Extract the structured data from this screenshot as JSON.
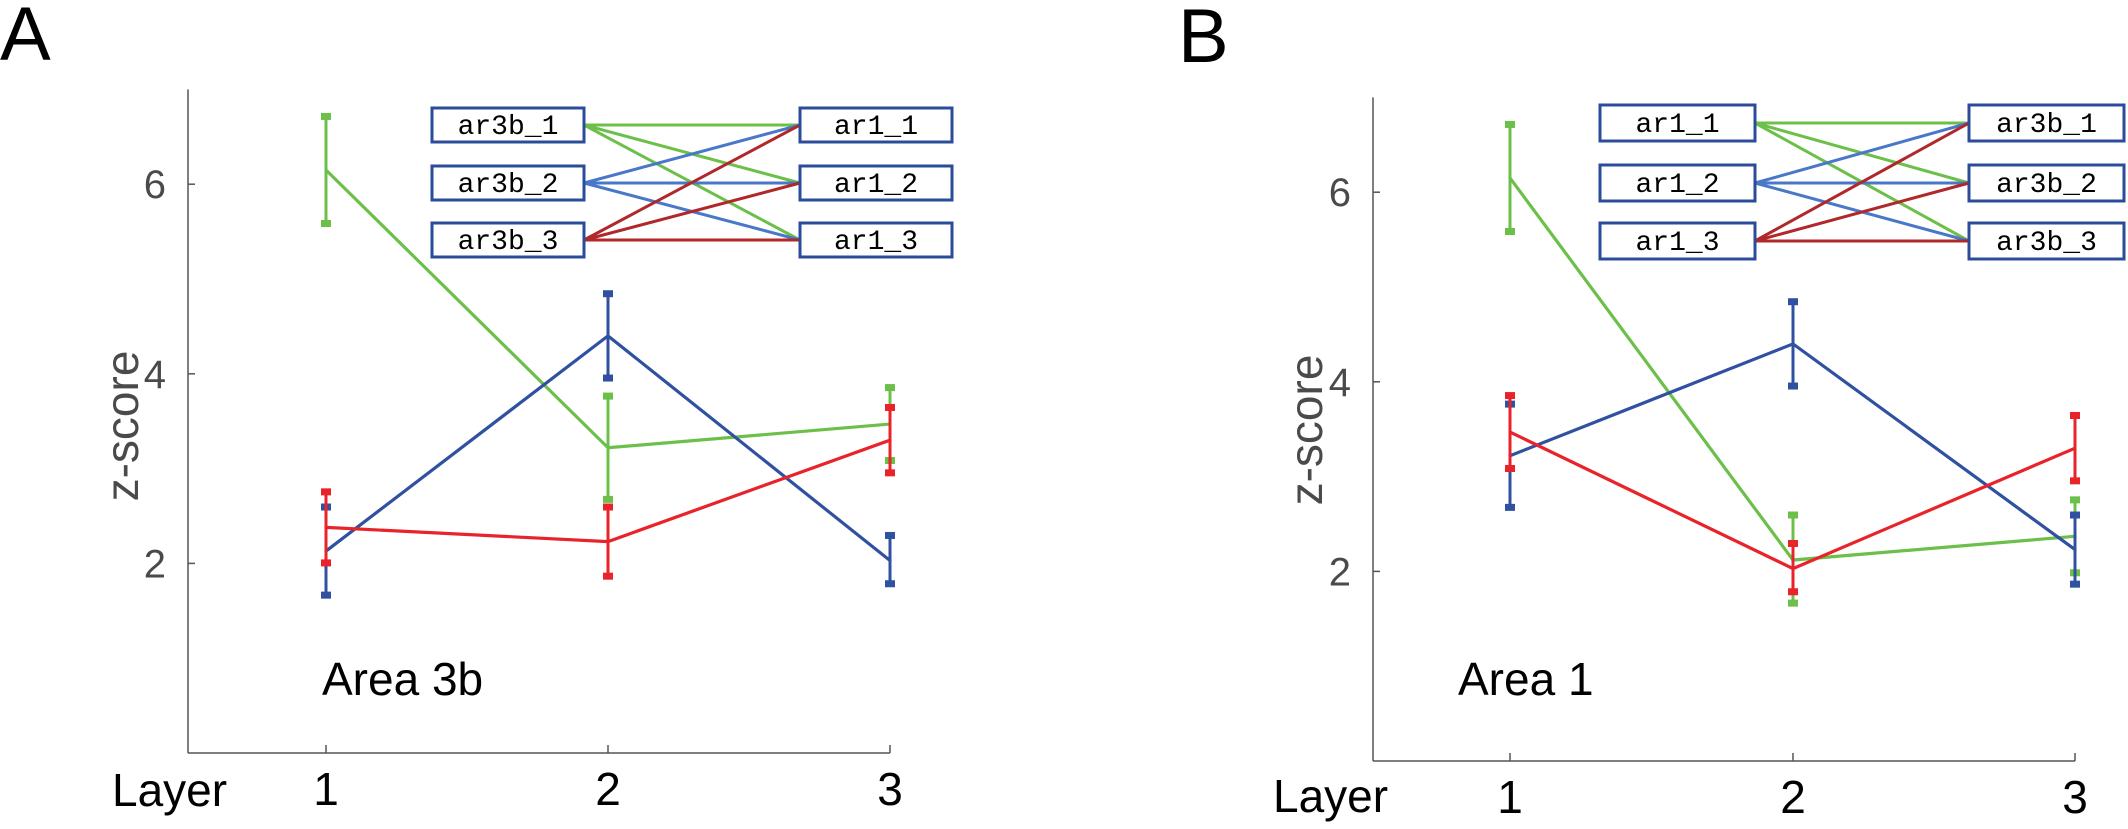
{
  "chart_data": [
    {
      "type": "line",
      "panel_letter": "A",
      "xlabel": "Layer",
      "ylabel": "z-score",
      "annotation": "Area 3b",
      "categories": [
        "1",
        "2",
        "3"
      ],
      "x": [
        1,
        2,
        3
      ],
      "ylim": [
        0,
        7
      ],
      "yticks": [
        2,
        4,
        6
      ],
      "grid": false,
      "series": [
        {
          "color": "#6cc04a",
          "values": [
            6.15,
            3.22,
            3.47
          ],
          "err_low": [
            5.58,
            2.67,
            3.08
          ],
          "err_high": [
            6.72,
            3.77,
            3.86
          ]
        },
        {
          "color": "#3050a0",
          "values": [
            2.13,
            4.4,
            2.03
          ],
          "err_low": [
            1.66,
            3.95,
            1.78
          ],
          "err_high": [
            2.6,
            4.85,
            2.3
          ]
        },
        {
          "color": "#e8232a",
          "values": [
            2.38,
            2.23,
            3.3
          ],
          "err_low": [
            2.0,
            1.86,
            2.95
          ],
          "err_high": [
            2.76,
            2.6,
            3.65
          ]
        }
      ],
      "diagram": {
        "left_boxes": [
          "ar3b_1",
          "ar3b_2",
          "ar3b_3"
        ],
        "right_boxes": [
          "ar1_1",
          "ar1_2",
          "ar1_3"
        ],
        "connections": [
          {
            "from": 0,
            "color": "#6cc04a"
          },
          {
            "from": 1,
            "color": "#4a78c8"
          },
          {
            "from": 2,
            "color": "#b0282a"
          }
        ]
      }
    },
    {
      "type": "line",
      "panel_letter": "B",
      "xlabel": "Layer",
      "ylabel": "z-score",
      "annotation": "Area 1",
      "categories": [
        "1",
        "2",
        "3"
      ],
      "x": [
        1,
        2,
        3
      ],
      "ylim": [
        0,
        7
      ],
      "yticks": [
        2,
        4,
        6
      ],
      "grid": false,
      "series": [
        {
          "color": "#6cc04a",
          "values": [
            6.15,
            2.12,
            2.37
          ],
          "err_low": [
            5.58,
            1.66,
            1.98
          ],
          "err_high": [
            6.72,
            2.6,
            2.76
          ]
        },
        {
          "color": "#3050a0",
          "values": [
            3.22,
            4.4,
            2.23
          ],
          "err_low": [
            2.67,
            3.95,
            1.86
          ],
          "err_high": [
            3.77,
            4.85,
            2.6
          ]
        },
        {
          "color": "#e8232a",
          "values": [
            3.47,
            2.03,
            3.3
          ],
          "err_low": [
            3.08,
            1.78,
            2.95
          ],
          "err_high": [
            3.86,
            2.3,
            3.65
          ]
        }
      ],
      "diagram": {
        "left_boxes": [
          "ar1_1",
          "ar1_2",
          "ar1_3"
        ],
        "right_boxes": [
          "ar3b_1",
          "ar3b_2",
          "ar3b_3"
        ],
        "connections": [
          {
            "from": 0,
            "color": "#6cc04a"
          },
          {
            "from": 1,
            "color": "#4a78c8"
          },
          {
            "from": 2,
            "color": "#b0282a"
          }
        ]
      }
    }
  ]
}
